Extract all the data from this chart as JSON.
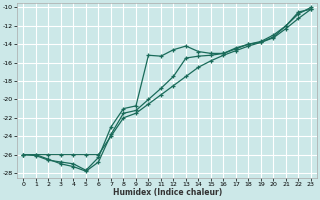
{
  "xlabel": "Humidex (Indice chaleur)",
  "bg_color": "#cce8e8",
  "grid_color": "#ffffff",
  "line_color": "#1a6b5a",
  "xlim": [
    -0.5,
    23.5
  ],
  "ylim": [
    -28.5,
    -9.5
  ],
  "xticks": [
    0,
    1,
    2,
    3,
    4,
    5,
    6,
    7,
    8,
    9,
    10,
    11,
    12,
    13,
    14,
    15,
    16,
    17,
    18,
    19,
    20,
    21,
    22,
    23
  ],
  "yticks": [
    -28,
    -26,
    -24,
    -22,
    -20,
    -18,
    -16,
    -14,
    -12,
    -10
  ],
  "series1_x": [
    0,
    1,
    2,
    3,
    4,
    5,
    6,
    7,
    8,
    9,
    10,
    11,
    12,
    13,
    14,
    15,
    16,
    17,
    18,
    19,
    20,
    21,
    22,
    23
  ],
  "series1_y": [
    -26.0,
    -26.1,
    -26.6,
    -26.8,
    -27.0,
    -27.7,
    -26.3,
    -23.0,
    -21.0,
    -20.7,
    -15.2,
    -15.3,
    -14.6,
    -14.2,
    -14.8,
    -15.0,
    -15.0,
    -14.5,
    -14.0,
    -13.8,
    -13.2,
    -12.0,
    -10.5,
    -10.2
  ],
  "series2_x": [
    0,
    1,
    2,
    3,
    4,
    5,
    6,
    7,
    8,
    9,
    10,
    11,
    12,
    13,
    14,
    15,
    16,
    17,
    18,
    19,
    20,
    21,
    22,
    23
  ],
  "series2_y": [
    -26.0,
    -26.0,
    -26.0,
    -26.0,
    -26.0,
    -26.0,
    -26.0,
    -24.0,
    -22.0,
    -21.5,
    -20.5,
    -19.5,
    -18.5,
    -17.5,
    -16.5,
    -15.8,
    -15.2,
    -14.7,
    -14.2,
    -13.8,
    -13.3,
    -12.3,
    -11.2,
    -10.2
  ],
  "series3_x": [
    0,
    1,
    2,
    3,
    4,
    5,
    6,
    7,
    8,
    9,
    10,
    11,
    12,
    13,
    14,
    15,
    16,
    17,
    18,
    19,
    20,
    21,
    22,
    23
  ],
  "series3_y": [
    -26.0,
    -26.0,
    -26.5,
    -27.0,
    -27.3,
    -27.8,
    -26.8,
    -23.8,
    -21.5,
    -21.2,
    -20.0,
    -18.8,
    -17.5,
    -15.5,
    -15.3,
    -15.2,
    -15.0,
    -14.4,
    -14.0,
    -13.7,
    -13.0,
    -12.0,
    -10.7,
    -10.0
  ]
}
